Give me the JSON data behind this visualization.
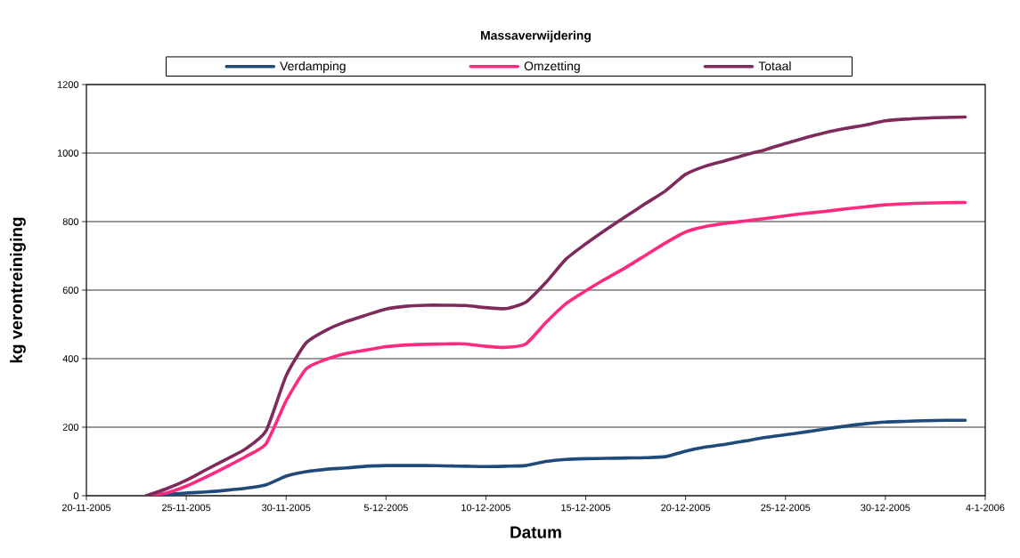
{
  "chart_data": {
    "type": "line",
    "title": "Massaverwijdering",
    "xlabel": "Datum",
    "ylabel": "kg verontreiniging",
    "x": [
      "2005-11-23",
      "2005-11-24",
      "2005-11-25",
      "2005-11-26",
      "2005-11-27",
      "2005-11-28",
      "2005-11-29",
      "2005-11-30",
      "2005-12-01",
      "2005-12-02",
      "2005-12-03",
      "2005-12-04",
      "2005-12-05",
      "2005-12-06",
      "2005-12-07",
      "2005-12-08",
      "2005-12-09",
      "2005-12-10",
      "2005-12-11",
      "2005-12-12",
      "2005-12-13",
      "2005-12-14",
      "2005-12-15",
      "2005-12-16",
      "2005-12-17",
      "2005-12-18",
      "2005-12-19",
      "2005-12-20",
      "2005-12-21",
      "2005-12-22",
      "2005-12-23",
      "2005-12-24",
      "2005-12-25",
      "2005-12-26",
      "2005-12-27",
      "2005-12-28",
      "2005-12-29",
      "2005-12-30",
      "2005-12-31",
      "2006-01-01",
      "2006-01-02",
      "2006-01-03"
    ],
    "series": [
      {
        "name": "Verdamping",
        "color": "#1f4a7a",
        "values": [
          0,
          3,
          8,
          11,
          16,
          22,
          32,
          57,
          70,
          77,
          81,
          86,
          88,
          88,
          88,
          87,
          86,
          85,
          86,
          88,
          100,
          106,
          108,
          109,
          110,
          111,
          114,
          130,
          142,
          150,
          160,
          170,
          178,
          186,
          195,
          203,
          210,
          215,
          217,
          219,
          220,
          220
        ]
      },
      {
        "name": "Omzetting",
        "color": "#ff2a7f",
        "values": [
          0,
          8,
          28,
          55,
          84,
          115,
          152,
          277,
          370,
          398,
          415,
          425,
          435,
          440,
          442,
          443,
          443,
          436,
          433,
          443,
          505,
          560,
          598,
          633,
          666,
          702,
          738,
          770,
          786,
          795,
          802,
          809,
          817,
          824,
          830,
          837,
          843,
          849,
          852,
          854,
          855,
          856
        ]
      },
      {
        "name": "Totaal",
        "color": "#7e2b5b",
        "values": [
          0,
          20,
          45,
          76,
          106,
          138,
          190,
          350,
          446,
          483,
          508,
          527,
          545,
          553,
          556,
          556,
          555,
          549,
          546,
          565,
          622,
          690,
          735,
          776,
          815,
          853,
          890,
          938,
          962,
          978,
          995,
          1010,
          1028,
          1045,
          1060,
          1072,
          1082,
          1094,
          1099,
          1102,
          1104,
          1105
        ]
      }
    ],
    "xlim": [
      "2005-11-20",
      "2006-01-04"
    ],
    "xticks": [
      {
        "value": "2005-11-20",
        "label": "20-11-2005"
      },
      {
        "value": "2005-11-25",
        "label": "25-11-2005"
      },
      {
        "value": "2005-11-30",
        "label": "30-11-2005"
      },
      {
        "value": "2005-12-05",
        "label": "5-12-2005"
      },
      {
        "value": "2005-12-10",
        "label": "10-12-2005"
      },
      {
        "value": "2005-12-15",
        "label": "15-12-2005"
      },
      {
        "value": "2005-12-20",
        "label": "20-12-2005"
      },
      {
        "value": "2005-12-25",
        "label": "25-12-2005"
      },
      {
        "value": "2005-12-30",
        "label": "30-12-2005"
      },
      {
        "value": "2006-01-04",
        "label": "4-1-2006"
      }
    ],
    "ylim": [
      0,
      1200
    ],
    "yticks": [
      0,
      200,
      400,
      600,
      800,
      1000,
      1200
    ],
    "grid": "y",
    "legend": "top",
    "line_style": "solid"
  }
}
